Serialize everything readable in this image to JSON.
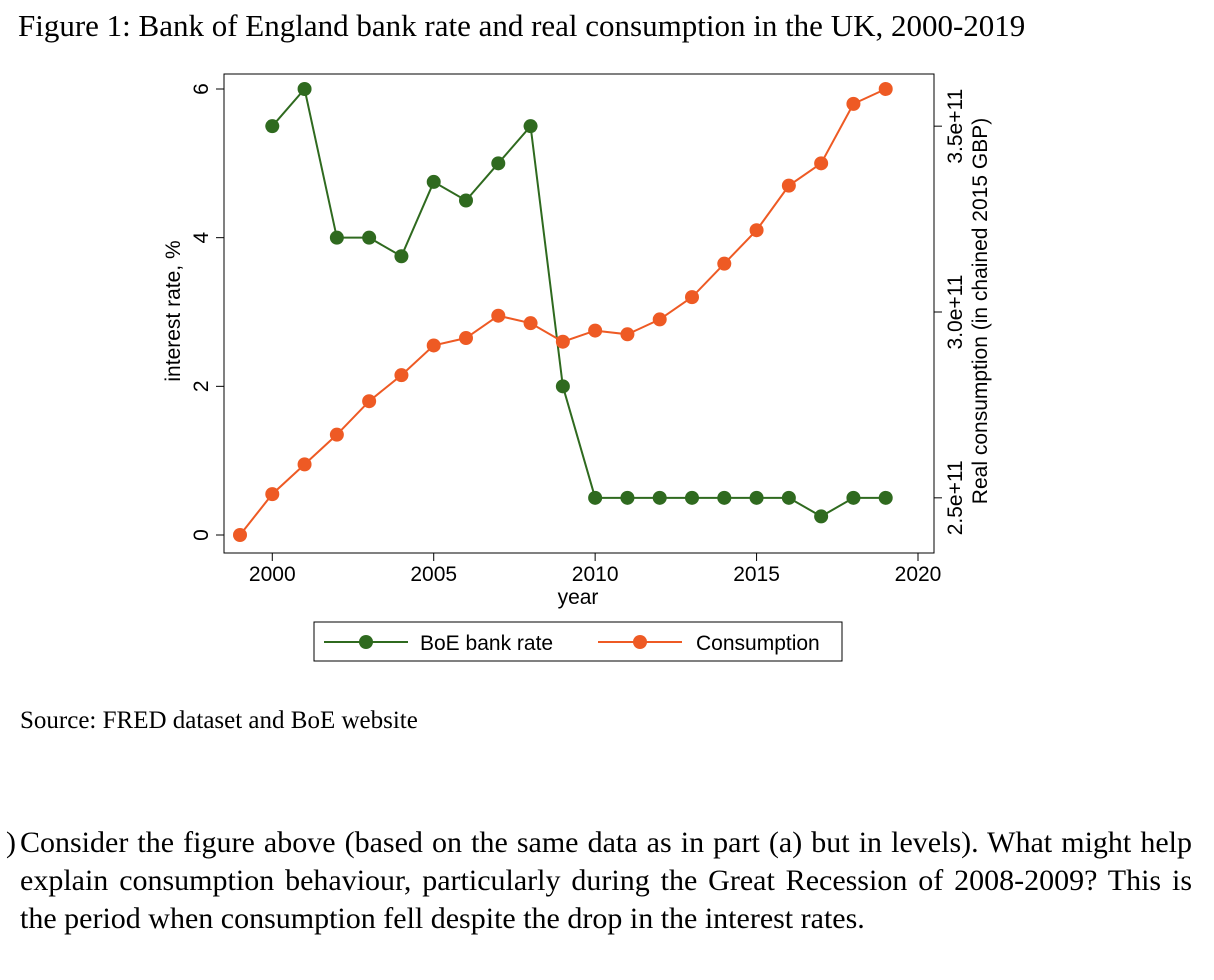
{
  "document": {
    "figure_title": "Figure 1: Bank of England bank rate and real consumption in the UK, 2000-2019",
    "source": "Source: FRED dataset and BoE website",
    "question_marker": ")",
    "question": "Consider the figure above (based on the same data as in part (a) but in levels). What might help explain consumption behaviour, particularly during the Great Recession of 2008-2009? This is the period when consumption fell despite the drop in the interest rates."
  },
  "colors": {
    "bank_rate": "#2f6a1f",
    "consumption": "#ee5a24"
  },
  "chart_data": {
    "type": "line",
    "title": "Figure 1: Bank of England bank rate and real consumption in the UK, 2000-2019",
    "xlabel": "year",
    "ylabel_left": "interest rate, %",
    "ylabel_right": "Real consumption (in chained 2015 GBP)",
    "xlim": [
      1999,
      2020
    ],
    "ylim_left": [
      0,
      6
    ],
    "ylim_right": [
      240000000000.0,
      360000000000.0
    ],
    "x_ticks": [
      2000,
      2005,
      2010,
      2015,
      2020
    ],
    "y_left_ticks": [
      0,
      2,
      4,
      6
    ],
    "y_right_ticks": [
      250000000000.0,
      300000000000.0,
      350000000000.0
    ],
    "x_tick_labels": [
      "2000",
      "2005",
      "2010",
      "2015",
      "2020"
    ],
    "y_left_tick_labels": [
      "0",
      "2",
      "4",
      "6"
    ],
    "y_right_tick_labels": [
      "2.5e+11",
      "3.0e+11",
      "3.5e+11"
    ],
    "legend_position": "bottom",
    "grid": false,
    "series": [
      {
        "name": "BoE bank rate",
        "axis": "left",
        "x": [
          2000,
          2001,
          2002,
          2003,
          2004,
          2005,
          2006,
          2007,
          2008,
          2009,
          2010,
          2011,
          2012,
          2013,
          2014,
          2015,
          2016,
          2017,
          2018,
          2019
        ],
        "values": [
          5.5,
          6.0,
          4.0,
          4.0,
          3.75,
          4.75,
          4.5,
          5.0,
          5.5,
          2.0,
          0.5,
          0.5,
          0.5,
          0.5,
          0.5,
          0.5,
          0.5,
          0.25,
          0.5,
          0.5
        ]
      },
      {
        "name": "Consumption",
        "axis": "right",
        "x": [
          1999,
          2000,
          2001,
          2002,
          2003,
          2004,
          2005,
          2006,
          2007,
          2008,
          2009,
          2010,
          2011,
          2012,
          2013,
          2014,
          2015,
          2016,
          2017,
          2018,
          2019
        ],
        "values": [
          240000000000.0,
          251000000000.0,
          259000000000.0,
          267000000000.0,
          276000000000.0,
          283000000000.0,
          291000000000.0,
          293000000000.0,
          299000000000.0,
          297000000000.0,
          292000000000.0,
          295000000000.0,
          294000000000.0,
          298000000000.0,
          304000000000.0,
          313000000000.0,
          322000000000.0,
          334000000000.0,
          340000000000.0,
          356000000000.0,
          360000000000.0
        ]
      }
    ]
  }
}
